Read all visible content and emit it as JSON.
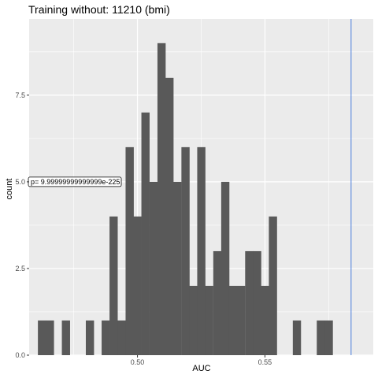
{
  "chart_data": {
    "type": "bar",
    "title": "Training without: 11210 (bmi)",
    "xlabel": "AUC",
    "ylabel": "count",
    "xlim": [
      0.4575,
      0.5925
    ],
    "ylim": [
      0,
      9.7
    ],
    "x_ticks": [
      0.5,
      0.55
    ],
    "x_tick_labels": [
      "0.50",
      "0.55"
    ],
    "y_ticks": [
      0,
      2.5,
      5,
      7.5
    ],
    "y_tick_labels": [
      "0.0",
      "2.5",
      "5.0",
      "7.5"
    ],
    "grid": true,
    "bin_width": 0.003125,
    "bins": [
      {
        "x": 0.4625,
        "count": 1
      },
      {
        "x": 0.4656,
        "count": 1
      },
      {
        "x": 0.4719,
        "count": 1
      },
      {
        "x": 0.4813,
        "count": 1
      },
      {
        "x": 0.4875,
        "count": 1
      },
      {
        "x": 0.4906,
        "count": 4
      },
      {
        "x": 0.4938,
        "count": 1
      },
      {
        "x": 0.4969,
        "count": 6
      },
      {
        "x": 0.5,
        "count": 4
      },
      {
        "x": 0.5031,
        "count": 7
      },
      {
        "x": 0.5063,
        "count": 5
      },
      {
        "x": 0.5094,
        "count": 9
      },
      {
        "x": 0.5125,
        "count": 8
      },
      {
        "x": 0.5156,
        "count": 5
      },
      {
        "x": 0.5188,
        "count": 6
      },
      {
        "x": 0.5219,
        "count": 2
      },
      {
        "x": 0.525,
        "count": 6
      },
      {
        "x": 0.5281,
        "count": 2
      },
      {
        "x": 0.5313,
        "count": 3
      },
      {
        "x": 0.5344,
        "count": 5
      },
      {
        "x": 0.5375,
        "count": 2
      },
      {
        "x": 0.5406,
        "count": 2
      },
      {
        "x": 0.5438,
        "count": 3
      },
      {
        "x": 0.5469,
        "count": 3
      },
      {
        "x": 0.55,
        "count": 2
      },
      {
        "x": 0.5531,
        "count": 4
      },
      {
        "x": 0.5625,
        "count": 1
      },
      {
        "x": 0.5719,
        "count": 1
      },
      {
        "x": 0.575,
        "count": 1
      }
    ],
    "bar_color": "#595959",
    "panel_color": "#ebebeb",
    "vline": {
      "x": 0.5838,
      "color": "#4c7fdd"
    },
    "annotation": {
      "text": "p= 9.99999999999999e-225",
      "x": 0.4575,
      "y": 5.0
    }
  }
}
